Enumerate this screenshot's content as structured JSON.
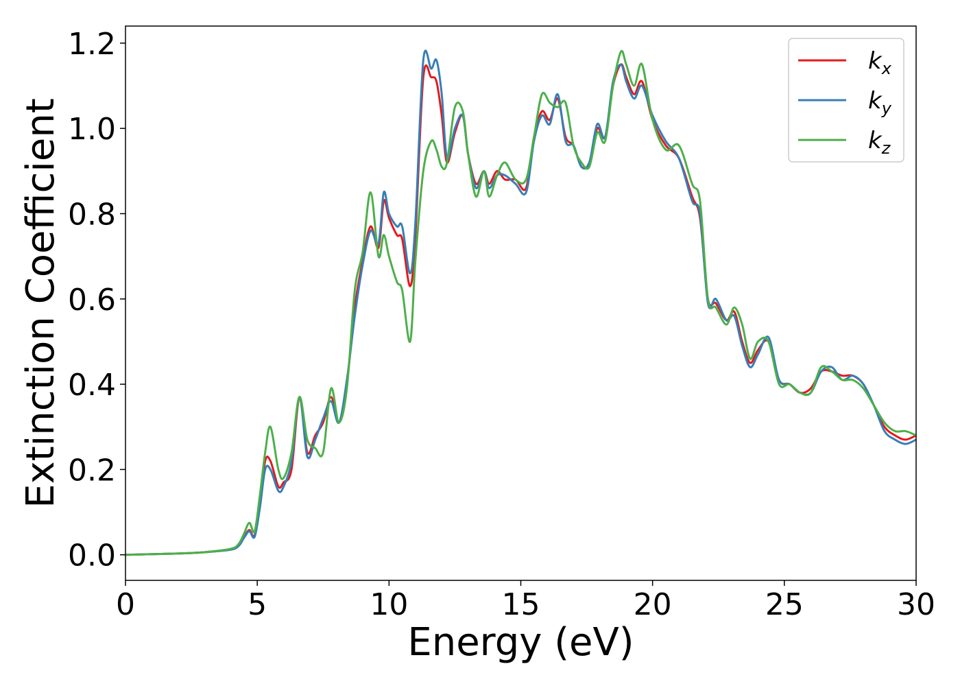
{
  "chart_data": {
    "type": "line",
    "title": "",
    "xlabel": "Energy (eV)",
    "ylabel": "Extinction Coefficient",
    "xlim": [
      0,
      30
    ],
    "ylim": [
      -0.06,
      1.24
    ],
    "xticks": [
      0,
      5,
      10,
      15,
      20,
      25,
      30
    ],
    "yticks": [
      0.0,
      0.2,
      0.4,
      0.6,
      0.8,
      1.0,
      1.2
    ],
    "xtick_labels": [
      "0",
      "5",
      "10",
      "15",
      "20",
      "25",
      "30"
    ],
    "ytick_labels": [
      "0.0",
      "0.2",
      "0.4",
      "0.6",
      "0.8",
      "1.0",
      "1.2"
    ],
    "grid": false,
    "legend_position": "top-right",
    "series": [
      {
        "name": "k",
        "subscript": "x",
        "color": "#e41a1c",
        "x": [
          0,
          2,
          3,
          4,
          4.3,
          4.5,
          4.7,
          4.9,
          5.1,
          5.3,
          5.5,
          5.8,
          6.0,
          6.3,
          6.6,
          6.9,
          7.2,
          7.5,
          7.8,
          8.1,
          8.4,
          8.7,
          9.0,
          9.3,
          9.6,
          9.8,
          10.0,
          10.3,
          10.5,
          10.8,
          11.0,
          11.3,
          11.6,
          11.8,
          12.0,
          12.2,
          12.5,
          12.8,
          13.0,
          13.3,
          13.6,
          13.8,
          14.1,
          14.4,
          14.8,
          15.2,
          15.5,
          15.8,
          16.1,
          16.4,
          16.7,
          17.0,
          17.3,
          17.6,
          17.9,
          18.2,
          18.5,
          18.8,
          19.0,
          19.3,
          19.6,
          20.0,
          20.5,
          21.0,
          21.5,
          21.8,
          22.1,
          22.4,
          22.8,
          23.1,
          23.4,
          23.7,
          24.0,
          24.4,
          24.8,
          25.2,
          25.6,
          26.0,
          26.4,
          26.8,
          27.2,
          27.6,
          28.0,
          28.4,
          28.8,
          29.2,
          29.6,
          30
        ],
        "values": [
          0.0,
          0.003,
          0.006,
          0.013,
          0.023,
          0.042,
          0.058,
          0.045,
          0.12,
          0.22,
          0.22,
          0.16,
          0.17,
          0.2,
          0.37,
          0.24,
          0.28,
          0.31,
          0.37,
          0.31,
          0.4,
          0.58,
          0.69,
          0.77,
          0.72,
          0.83,
          0.79,
          0.75,
          0.74,
          0.63,
          0.75,
          1.12,
          1.12,
          1.11,
          1.03,
          0.92,
          0.99,
          1.03,
          0.94,
          0.87,
          0.9,
          0.87,
          0.9,
          0.88,
          0.88,
          0.86,
          0.98,
          1.04,
          1.02,
          1.07,
          0.98,
          0.96,
          0.91,
          0.92,
          1.0,
          0.98,
          1.1,
          1.15,
          1.12,
          1.08,
          1.11,
          1.02,
          0.96,
          0.93,
          0.84,
          0.79,
          0.6,
          0.59,
          0.55,
          0.57,
          0.5,
          0.45,
          0.48,
          0.5,
          0.41,
          0.4,
          0.38,
          0.39,
          0.43,
          0.43,
          0.42,
          0.42,
          0.4,
          0.35,
          0.3,
          0.28,
          0.27,
          0.28
        ]
      },
      {
        "name": "k",
        "subscript": "y",
        "color": "#377eb8",
        "x": [
          0,
          2,
          3,
          4,
          4.3,
          4.5,
          4.7,
          4.9,
          5.1,
          5.3,
          5.5,
          5.8,
          6.0,
          6.3,
          6.6,
          6.9,
          7.2,
          7.5,
          7.8,
          8.1,
          8.4,
          8.7,
          9.0,
          9.3,
          9.6,
          9.8,
          10.0,
          10.3,
          10.5,
          10.8,
          11.0,
          11.3,
          11.6,
          11.8,
          12.0,
          12.2,
          12.5,
          12.8,
          13.0,
          13.3,
          13.6,
          13.8,
          14.1,
          14.4,
          14.8,
          15.2,
          15.5,
          15.8,
          16.1,
          16.4,
          16.7,
          17.0,
          17.3,
          17.6,
          17.9,
          18.2,
          18.5,
          18.8,
          19.0,
          19.3,
          19.6,
          20.0,
          20.5,
          21.0,
          21.5,
          21.8,
          22.1,
          22.4,
          22.8,
          23.1,
          23.4,
          23.7,
          24.0,
          24.4,
          24.8,
          25.2,
          25.6,
          26.0,
          26.4,
          26.8,
          27.2,
          27.6,
          28.0,
          28.4,
          28.8,
          29.2,
          29.6,
          30
        ],
        "values": [
          0.0,
          0.003,
          0.006,
          0.012,
          0.021,
          0.04,
          0.055,
          0.042,
          0.11,
          0.2,
          0.2,
          0.15,
          0.16,
          0.22,
          0.37,
          0.23,
          0.27,
          0.32,
          0.36,
          0.31,
          0.41,
          0.56,
          0.68,
          0.76,
          0.73,
          0.85,
          0.8,
          0.77,
          0.77,
          0.66,
          0.78,
          1.16,
          1.14,
          1.16,
          1.08,
          0.93,
          1.0,
          1.03,
          0.94,
          0.86,
          0.9,
          0.86,
          0.89,
          0.89,
          0.87,
          0.85,
          0.97,
          1.03,
          1.01,
          1.08,
          0.97,
          0.96,
          0.91,
          0.92,
          1.01,
          0.98,
          1.11,
          1.15,
          1.11,
          1.07,
          1.1,
          1.03,
          0.97,
          0.93,
          0.83,
          0.8,
          0.59,
          0.6,
          0.55,
          0.56,
          0.49,
          0.44,
          0.47,
          0.51,
          0.41,
          0.4,
          0.38,
          0.38,
          0.43,
          0.44,
          0.41,
          0.42,
          0.4,
          0.35,
          0.29,
          0.27,
          0.26,
          0.27
        ]
      },
      {
        "name": "k",
        "subscript": "z",
        "color": "#4daf4a",
        "x": [
          0,
          2,
          3,
          4,
          4.3,
          4.5,
          4.7,
          4.9,
          5.1,
          5.3,
          5.5,
          5.8,
          6.0,
          6.3,
          6.6,
          6.9,
          7.2,
          7.5,
          7.8,
          8.1,
          8.4,
          8.7,
          9.0,
          9.3,
          9.6,
          9.8,
          10.0,
          10.3,
          10.5,
          10.8,
          11.0,
          11.3,
          11.6,
          11.8,
          12.0,
          12.2,
          12.5,
          12.8,
          13.0,
          13.3,
          13.6,
          13.8,
          14.1,
          14.4,
          14.8,
          15.2,
          15.5,
          15.8,
          16.1,
          16.4,
          16.7,
          17.0,
          17.3,
          17.6,
          17.9,
          18.2,
          18.5,
          18.8,
          19.0,
          19.3,
          19.6,
          20.0,
          20.5,
          21.0,
          21.5,
          21.8,
          22.1,
          22.4,
          22.8,
          23.1,
          23.4,
          23.7,
          24.0,
          24.4,
          24.8,
          25.2,
          25.6,
          26.0,
          26.4,
          26.8,
          27.2,
          27.6,
          28.0,
          28.4,
          28.8,
          29.2,
          29.6,
          30
        ],
        "values": [
          0.0,
          0.003,
          0.006,
          0.014,
          0.026,
          0.05,
          0.075,
          0.055,
          0.14,
          0.24,
          0.3,
          0.2,
          0.18,
          0.24,
          0.37,
          0.27,
          0.25,
          0.24,
          0.39,
          0.31,
          0.39,
          0.62,
          0.71,
          0.85,
          0.7,
          0.75,
          0.7,
          0.64,
          0.62,
          0.5,
          0.69,
          0.9,
          0.97,
          0.95,
          0.91,
          0.92,
          1.05,
          1.04,
          0.94,
          0.84,
          0.9,
          0.84,
          0.89,
          0.92,
          0.88,
          0.88,
          0.98,
          1.08,
          1.06,
          1.05,
          1.06,
          0.96,
          0.92,
          0.91,
          0.99,
          0.97,
          1.1,
          1.18,
          1.15,
          1.1,
          1.15,
          1.02,
          0.95,
          0.96,
          0.87,
          0.83,
          0.6,
          0.58,
          0.54,
          0.58,
          0.54,
          0.46,
          0.5,
          0.5,
          0.4,
          0.4,
          0.38,
          0.38,
          0.44,
          0.43,
          0.41,
          0.41,
          0.39,
          0.35,
          0.31,
          0.29,
          0.29,
          0.28
        ]
      }
    ]
  }
}
